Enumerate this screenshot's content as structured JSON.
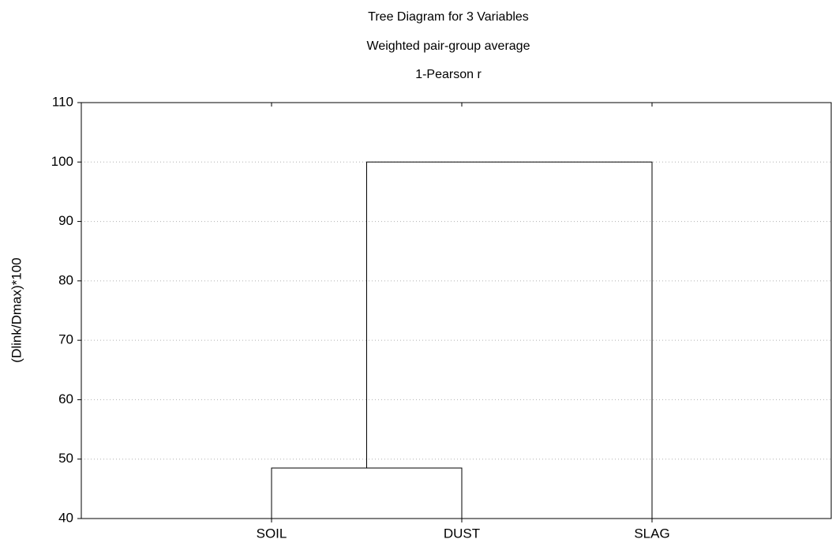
{
  "chart_data": {
    "type": "dendrogram",
    "title": "Tree Diagram for 3 Variables",
    "subtitle": "Weighted pair-group average",
    "subtitle2": "1-Pearson r",
    "y_label": "(Dlink/Dmax)*100",
    "categories": [
      "SOIL",
      "DUST",
      "SLAG"
    ],
    "merges": [
      {
        "left": [
          0
        ],
        "right": [
          1
        ],
        "height": 48.5
      },
      {
        "left": [
          0,
          1
        ],
        "right": [
          2
        ],
        "height": 100
      }
    ],
    "ylim": [
      40,
      110
    ],
    "yticks": [
      40,
      50,
      60,
      70,
      80,
      90,
      100,
      110
    ],
    "grid": true,
    "color": "#000000"
  }
}
